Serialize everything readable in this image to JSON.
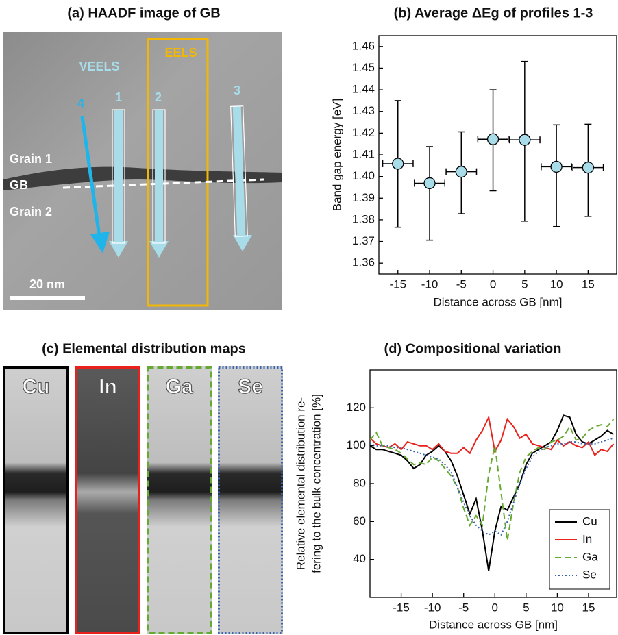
{
  "panel_a": {
    "title": "(a) HAADF image of GB",
    "labels": {
      "veels": "VEELS",
      "eels": "EELS",
      "profiles": [
        "1",
        "2",
        "3",
        "4"
      ],
      "grain1": "Grain 1",
      "gb": "GB",
      "grain2": "Grain 2",
      "scale": "20 nm"
    }
  },
  "panel_c": {
    "title": "(c) Elemental distribution maps",
    "maps": [
      "Cu",
      "In",
      "Ga",
      "Se"
    ]
  },
  "chart_data": [
    {
      "type": "scatter",
      "title": "(b) Average ΔEg of profiles 1-3",
      "xlabel": "Distance across GB [nm]",
      "ylabel": "Band gap energy [eV]",
      "x": [
        -15,
        -10,
        -5,
        0,
        5,
        10,
        15
      ],
      "values": [
        1.4059,
        1.3969,
        1.4022,
        1.4172,
        1.4169,
        1.4045,
        1.4041
      ],
      "lower": [
        1.3766,
        1.3706,
        1.3828,
        1.3934,
        1.3794,
        1.3769,
        1.3816
      ],
      "upper": [
        1.435,
        1.4138,
        1.4206,
        1.44,
        1.4531,
        1.4238,
        1.4241
      ],
      "xerr": [
        2.4,
        2.4,
        2.4,
        2.4,
        2.4,
        2.4,
        2.4
      ],
      "color": "#a8dce8",
      "xlim": [
        -18,
        19.5
      ],
      "xticks": [
        -15,
        -10,
        -5,
        0,
        5,
        10,
        15
      ],
      "ylim": [
        1.355,
        1.465
      ],
      "yticks": [
        1.36,
        1.37,
        1.38,
        1.39,
        {
          "value": 1.4,
          "label": "1.40"
        },
        1.41,
        1.42,
        1.43,
        1.44,
        1.45,
        1.46
      ]
    },
    {
      "type": "line",
      "title": "(d) Compositional variation",
      "xlabel": "Distance across GB [nm]",
      "ylabel": [
        "Relative elemental distribution re-",
        "fering to the  bulk concentration [%]"
      ],
      "x": [
        -20,
        -19,
        -18,
        -17,
        -16,
        -15,
        -14,
        -13,
        -12,
        -11,
        -10,
        -9,
        -8,
        -7,
        -6,
        -5,
        -4,
        -3,
        -2,
        -1,
        0,
        1,
        2,
        3,
        4,
        5,
        6,
        7,
        8,
        9,
        10,
        11,
        12,
        13,
        14,
        15,
        16,
        17,
        18,
        19
      ],
      "series": [
        {
          "name": "Cu",
          "color": "#000000",
          "linestyle": "solid",
          "values": [
            100,
            98,
            98,
            97,
            96,
            95,
            92,
            88,
            90,
            95,
            97,
            100,
            97,
            92,
            84,
            74,
            64,
            72,
            55,
            34,
            55,
            68,
            66,
            73,
            80,
            90,
            96,
            98,
            100,
            102,
            108,
            116,
            115,
            106,
            102,
            101,
            103,
            105,
            108,
            106
          ]
        },
        {
          "name": "In",
          "color": "#e8211c",
          "linestyle": "solid",
          "values": [
            104,
            101,
            100,
            99,
            101,
            98,
            102,
            101,
            100,
            100,
            98,
            101,
            97,
            96,
            96,
            99,
            96,
            103,
            108,
            115,
            97,
            103,
            114,
            110,
            104,
            106,
            101,
            100,
            99,
            98,
            103,
            100,
            102,
            100,
            99,
            102,
            95,
            98,
            97,
            101
          ]
        },
        {
          "name": "Ga",
          "color": "#66aa33",
          "linestyle": "dashed",
          "values": [
            103,
            107,
            100,
            99,
            98,
            96,
            93,
            90,
            91,
            90,
            94,
            92,
            88,
            84,
            78,
            67,
            58,
            63,
            58,
            85,
            100,
            75,
            50,
            70,
            86,
            94,
            97,
            99,
            98,
            102,
            103,
            105,
            110,
            103,
            104,
            108,
            110,
            111,
            110,
            114
          ]
        },
        {
          "name": "Se",
          "color": "#3a64b0",
          "linestyle": "dotted",
          "values": [
            101,
            100,
            100,
            100,
            99,
            99,
            98,
            97,
            96,
            95,
            94,
            93,
            90,
            86,
            78,
            70,
            63,
            58,
            55,
            53,
            55,
            53,
            60,
            70,
            80,
            88,
            94,
            97,
            99,
            100,
            101,
            101,
            102,
            102,
            101,
            101,
            101,
            102,
            103,
            104
          ]
        }
      ],
      "legend": "lower right",
      "xlim": [
        -20,
        19.5
      ],
      "xticks": [
        -15,
        -10,
        -5,
        0,
        5,
        10,
        15
      ],
      "ylim": [
        20,
        140
      ],
      "yticks": [
        40,
        60,
        80,
        100,
        120
      ]
    }
  ]
}
